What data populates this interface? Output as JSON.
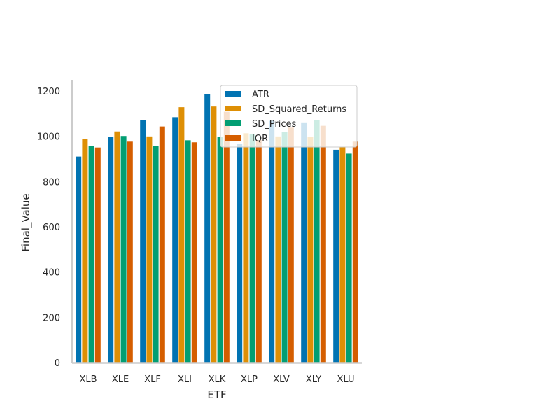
{
  "chart_data": {
    "type": "bar",
    "title": "",
    "xlabel": "ETF",
    "ylabel": "Final_Value",
    "categories": [
      "XLB",
      "XLE",
      "XLF",
      "XLI",
      "XLK",
      "XLP",
      "XLV",
      "XLY",
      "XLU"
    ],
    "ylim": [
      0,
      1250
    ],
    "yticks": [
      0,
      200,
      400,
      600,
      800,
      1000,
      1200
    ],
    "grid": false,
    "legend_position": "top-right",
    "series": [
      {
        "name": "ATR",
        "color": "#0173b2",
        "values": [
          912,
          998,
          1074,
          1086,
          1188,
          967,
          1070,
          1063,
          942
        ]
      },
      {
        "name": "SD_Squared_Returns",
        "color": "#de8f05",
        "values": [
          990,
          1023,
          1001,
          1130,
          1133,
          1015,
          1001,
          998,
          953
        ]
      },
      {
        "name": "SD_Prices",
        "color": "#029e73",
        "values": [
          960,
          1003,
          960,
          984,
          1000,
          1010,
          1022,
          1074,
          925
        ]
      },
      {
        "name": "IQR",
        "color": "#d55e00",
        "values": [
          952,
          978,
          1045,
          975,
          1110,
          985,
          1040,
          1048,
          978
        ]
      }
    ]
  }
}
